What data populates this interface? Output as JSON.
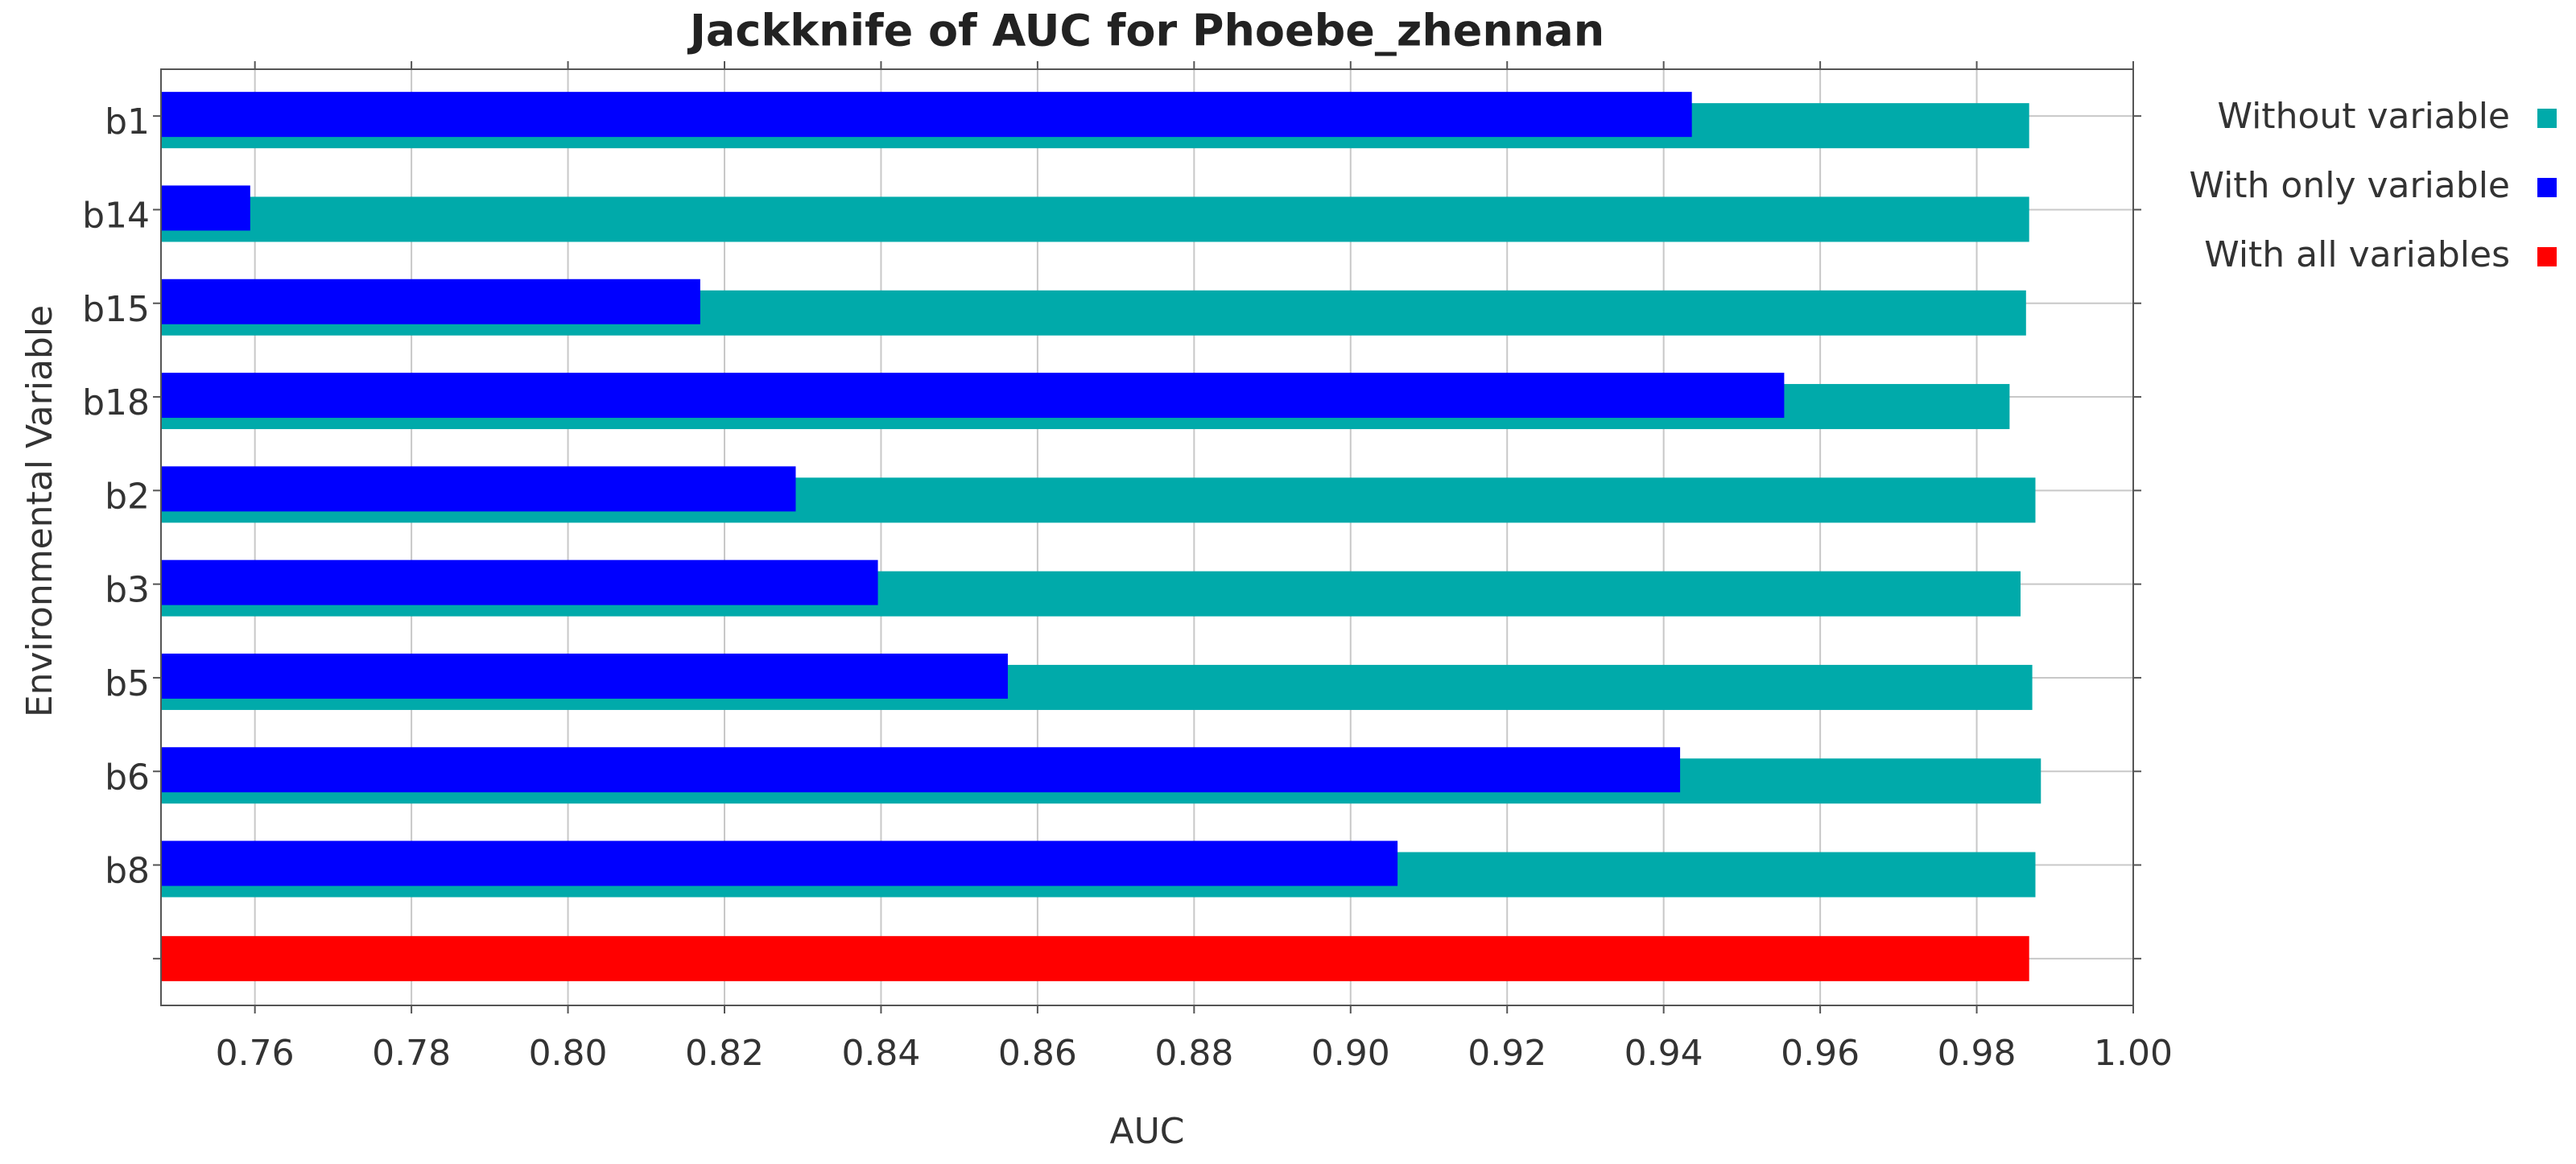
{
  "chart_data": {
    "type": "bar",
    "orientation": "horizontal",
    "title": "Jackknife of AUC for Phoebe_zhennan",
    "x_label": "AUC",
    "y_label": "Environmental Variable",
    "categories": [
      "b1",
      "b14",
      "b15",
      "b18",
      "b2",
      "b3",
      "b5",
      "b6",
      "b8",
      null
    ],
    "series": [
      {
        "name": "Without variable",
        "color": "#00aaaa",
        "values": [
          0.9867,
          0.9867,
          0.9863,
          0.9842,
          0.9875,
          0.9856,
          0.9871,
          0.9882,
          0.9875,
          null
        ]
      },
      {
        "name": "With only variable",
        "color": "#0000ff",
        "values": [
          0.9436,
          0.7594,
          0.8169,
          0.9554,
          0.8291,
          0.8396,
          0.8562,
          0.9421,
          0.906,
          null
        ]
      },
      {
        "name": "With all variables",
        "color": "#ff0000",
        "values": [
          null,
          null,
          null,
          null,
          null,
          null,
          null,
          null,
          null,
          0.9867
        ]
      }
    ],
    "xlim": [
      0.748,
      1.0
    ],
    "xticks": [
      0.76,
      0.78,
      {
        "value": 0.8,
        "label": "0.80"
      },
      0.82,
      0.84,
      0.86,
      0.88,
      {
        "value": 0.9,
        "label": "0.90"
      },
      0.92,
      0.94,
      0.96,
      0.98,
      {
        "value": 1.0,
        "label": "1.00"
      }
    ],
    "grid": true,
    "legend": "right"
  }
}
